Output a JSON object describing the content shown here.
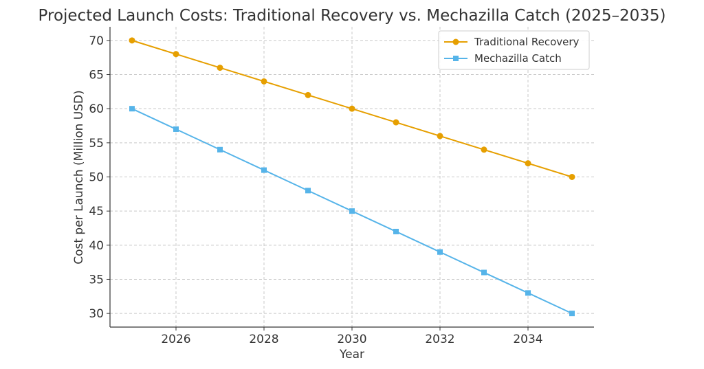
{
  "chart_data": {
    "type": "line",
    "title": "Projected Launch Costs: Traditional Recovery vs. Mechazilla Catch (2025–2035)",
    "xlabel": "Year",
    "ylabel": "Cost per Launch (Million USD)",
    "x": [
      2025,
      2026,
      2027,
      2028,
      2029,
      2030,
      2031,
      2032,
      2033,
      2034,
      2035
    ],
    "xlim": [
      2024.5,
      2035.5
    ],
    "ylim": [
      28,
      72
    ],
    "x_ticks": [
      2026,
      2028,
      2030,
      2032,
      2034
    ],
    "y_ticks": [
      30,
      35,
      40,
      45,
      50,
      55,
      60,
      65,
      70
    ],
    "grid": true,
    "legend_position": "top-right",
    "series": [
      {
        "name": "Traditional Recovery",
        "values": [
          70,
          68,
          66,
          64,
          62,
          60,
          58,
          56,
          54,
          52,
          50
        ],
        "color": "#E69F00",
        "marker": "circle"
      },
      {
        "name": "Mechazilla Catch",
        "values": [
          60,
          57,
          54,
          51,
          48,
          45,
          42,
          39,
          36,
          33,
          30
        ],
        "color": "#56B4E9",
        "marker": "square"
      }
    ]
  }
}
